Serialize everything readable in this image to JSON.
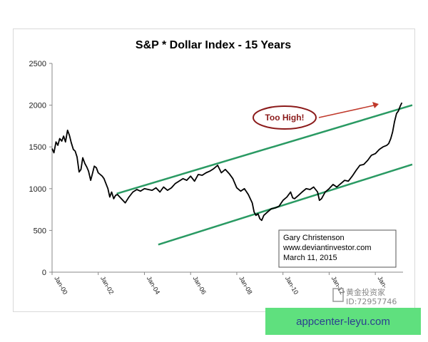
{
  "chart_data": {
    "type": "line",
    "title": "S&P * Dollar Index - 15 Years",
    "xlabel": "",
    "ylabel": "",
    "ylim": [
      0,
      2500
    ],
    "yticks": [
      0,
      500,
      1000,
      1500,
      2000,
      2500
    ],
    "x_range": [
      2000.0,
      2015.2
    ],
    "xticks": [
      {
        "label": "Jan-00",
        "x": 2000.0
      },
      {
        "label": "Jan-02",
        "x": 2002.0
      },
      {
        "label": "Jan-04",
        "x": 2004.0
      },
      {
        "label": "Jan-06",
        "x": 2006.0
      },
      {
        "label": "Jan-08",
        "x": 2008.0
      },
      {
        "label": "Jan-10",
        "x": 2010.0
      },
      {
        "label": "Jan-12",
        "x": 2012.0
      },
      {
        "label": "Jan-",
        "x": 2014.0
      }
    ],
    "grid": false,
    "series": [
      {
        "color": "#000000",
        "points": [
          [
            2000.0,
            1480
          ],
          [
            2000.08,
            1430
          ],
          [
            2000.17,
            1560
          ],
          [
            2000.25,
            1520
          ],
          [
            2000.33,
            1600
          ],
          [
            2000.42,
            1570
          ],
          [
            2000.5,
            1630
          ],
          [
            2000.58,
            1560
          ],
          [
            2000.67,
            1700
          ],
          [
            2000.75,
            1640
          ],
          [
            2000.83,
            1550
          ],
          [
            2000.92,
            1470
          ],
          [
            2001.0,
            1450
          ],
          [
            2001.08,
            1380
          ],
          [
            2001.17,
            1200
          ],
          [
            2001.25,
            1230
          ],
          [
            2001.33,
            1370
          ],
          [
            2001.42,
            1300
          ],
          [
            2001.5,
            1260
          ],
          [
            2001.58,
            1210
          ],
          [
            2001.67,
            1100
          ],
          [
            2001.75,
            1180
          ],
          [
            2001.83,
            1270
          ],
          [
            2001.92,
            1250
          ],
          [
            2002.0,
            1190
          ],
          [
            2002.17,
            1150
          ],
          [
            2002.25,
            1120
          ],
          [
            2002.42,
            1000
          ],
          [
            2002.5,
            900
          ],
          [
            2002.58,
            960
          ],
          [
            2002.67,
            880
          ],
          [
            2002.75,
            920
          ],
          [
            2002.83,
            930
          ],
          [
            2003.0,
            880
          ],
          [
            2003.17,
            830
          ],
          [
            2003.33,
            900
          ],
          [
            2003.5,
            960
          ],
          [
            2003.67,
            990
          ],
          [
            2003.83,
            970
          ],
          [
            2004.0,
            1000
          ],
          [
            2004.17,
            990
          ],
          [
            2004.33,
            980
          ],
          [
            2004.5,
            1010
          ],
          [
            2004.67,
            960
          ],
          [
            2004.83,
            1020
          ],
          [
            2005.0,
            980
          ],
          [
            2005.17,
            1010
          ],
          [
            2005.33,
            1060
          ],
          [
            2005.5,
            1090
          ],
          [
            2005.67,
            1120
          ],
          [
            2005.83,
            1100
          ],
          [
            2006.0,
            1150
          ],
          [
            2006.17,
            1090
          ],
          [
            2006.33,
            1170
          ],
          [
            2006.5,
            1160
          ],
          [
            2006.67,
            1190
          ],
          [
            2006.83,
            1210
          ],
          [
            2007.0,
            1240
          ],
          [
            2007.17,
            1280
          ],
          [
            2007.33,
            1190
          ],
          [
            2007.5,
            1230
          ],
          [
            2007.67,
            1180
          ],
          [
            2007.83,
            1120
          ],
          [
            2008.0,
            1010
          ],
          [
            2008.17,
            970
          ],
          [
            2008.33,
            1000
          ],
          [
            2008.5,
            930
          ],
          [
            2008.67,
            830
          ],
          [
            2008.75,
            720
          ],
          [
            2008.83,
            680
          ],
          [
            2008.92,
            700
          ],
          [
            2009.0,
            640
          ],
          [
            2009.08,
            620
          ],
          [
            2009.17,
            680
          ],
          [
            2009.33,
            720
          ],
          [
            2009.5,
            760
          ],
          [
            2009.67,
            770
          ],
          [
            2009.83,
            790
          ],
          [
            2010.0,
            860
          ],
          [
            2010.17,
            900
          ],
          [
            2010.33,
            960
          ],
          [
            2010.42,
            890
          ],
          [
            2010.5,
            880
          ],
          [
            2010.67,
            920
          ],
          [
            2010.83,
            960
          ],
          [
            2011.0,
            1000
          ],
          [
            2011.17,
            990
          ],
          [
            2011.33,
            1020
          ],
          [
            2011.5,
            960
          ],
          [
            2011.58,
            860
          ],
          [
            2011.67,
            880
          ],
          [
            2011.83,
            960
          ],
          [
            2012.0,
            1000
          ],
          [
            2012.17,
            1050
          ],
          [
            2012.33,
            1020
          ],
          [
            2012.5,
            1060
          ],
          [
            2012.67,
            1100
          ],
          [
            2012.83,
            1090
          ],
          [
            2013.0,
            1150
          ],
          [
            2013.17,
            1220
          ],
          [
            2013.33,
            1280
          ],
          [
            2013.5,
            1290
          ],
          [
            2013.67,
            1340
          ],
          [
            2013.83,
            1400
          ],
          [
            2014.0,
            1420
          ],
          [
            2014.17,
            1470
          ],
          [
            2014.33,
            1500
          ],
          [
            2014.5,
            1520
          ],
          [
            2014.58,
            1540
          ],
          [
            2014.67,
            1600
          ],
          [
            2014.75,
            1680
          ],
          [
            2014.83,
            1800
          ],
          [
            2014.92,
            1900
          ],
          [
            2015.0,
            1930
          ],
          [
            2015.08,
            1990
          ],
          [
            2015.15,
            2030
          ]
        ]
      }
    ],
    "trendlines": [
      {
        "color": "#2a9a63",
        "points": [
          [
            2002.8,
            940
          ],
          [
            2015.6,
            2000
          ]
        ]
      },
      {
        "color": "#2a9a63",
        "points": [
          [
            2004.6,
            330
          ],
          [
            2015.6,
            1290
          ]
        ]
      }
    ],
    "annotations": {
      "callout": "Too High!",
      "info_box": [
        "Gary Christenson",
        "www.deviantinvestor.com",
        "March 11, 2015"
      ]
    }
  },
  "watermark": {
    "line1": "黄金投资家",
    "line2": "ID:72957746"
  },
  "footer": {
    "text": "appcenter-leyu.com"
  }
}
